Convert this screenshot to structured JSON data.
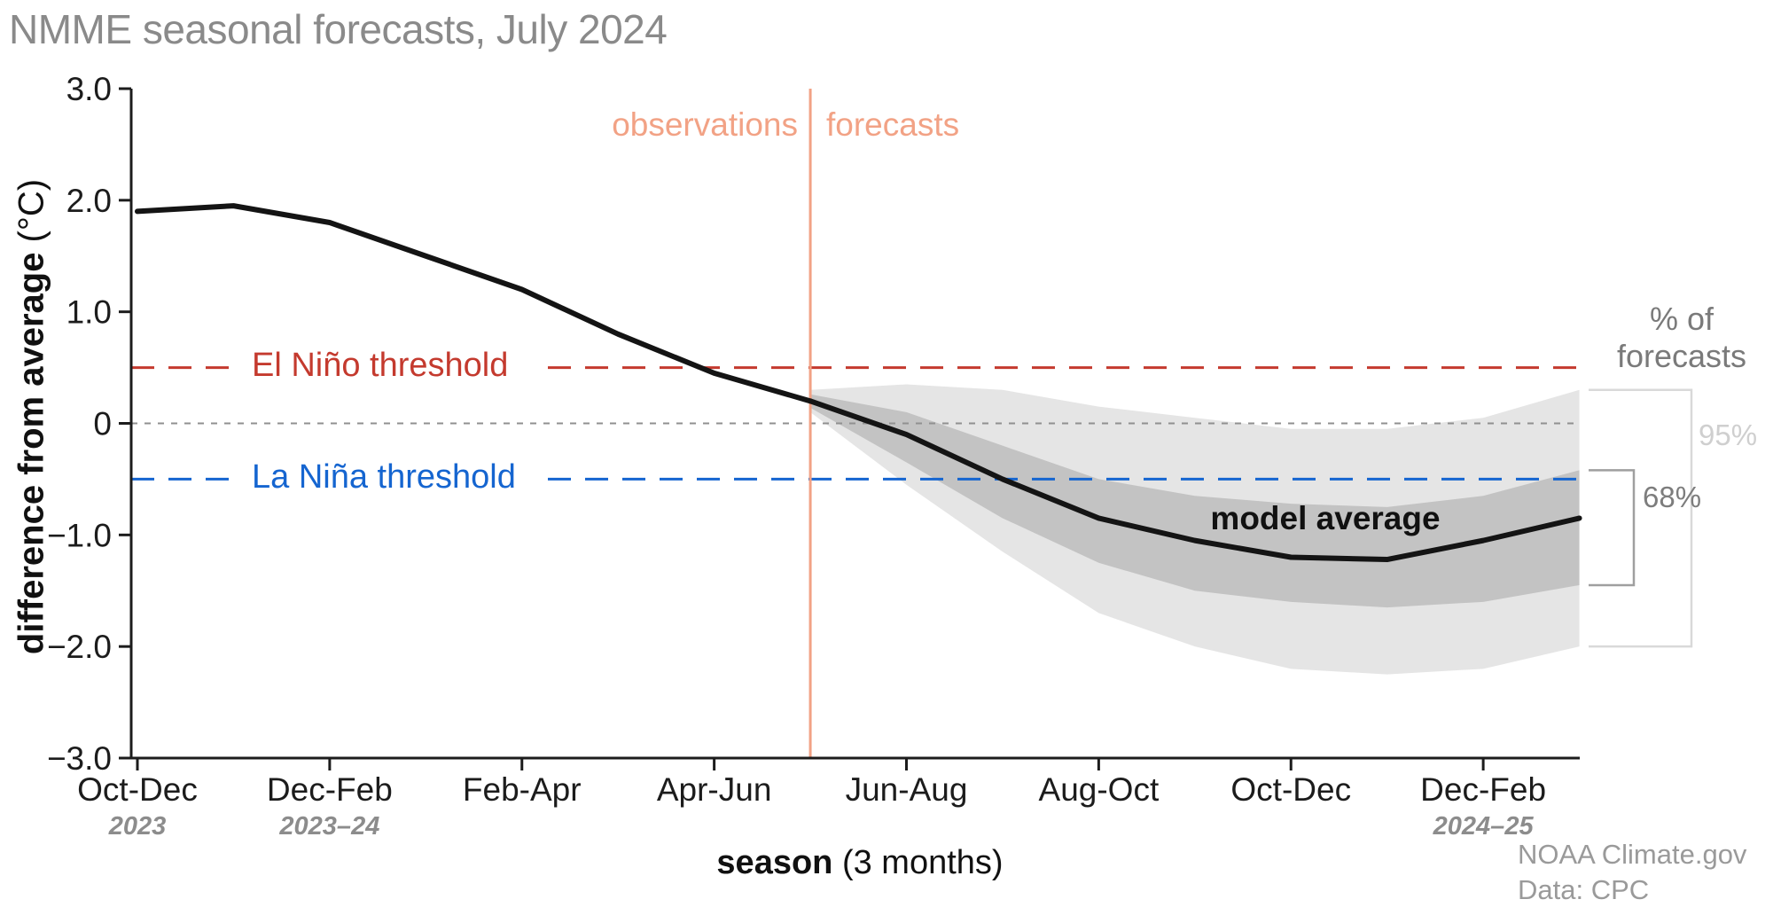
{
  "title": "NMME seasonal forecasts, July 2024",
  "axis": {
    "y_label_bold": "difference from average",
    "y_label_unit": " (°C)",
    "x_label_bold": "season",
    "x_label_rest": " (3 months)"
  },
  "labels": {
    "observations": "observations",
    "forecasts": "forecasts",
    "el_nino": "El Niño threshold",
    "la_nina": "La Niña threshold",
    "model_average": "model average",
    "pct_line1": "% of",
    "pct_line2": "forecasts"
  },
  "credits": {
    "line1": "NOAA Climate.gov",
    "line2": "Data: CPC"
  },
  "colors": {
    "observed_line": "#141414",
    "band_68": "#c3c3c3",
    "band_95": "#e5e5e5",
    "el_nino_red": "#c43a2e",
    "la_nina_blue": "#1565d0",
    "divider_salmon": "#f2a285",
    "zero_gray": "#909090",
    "axis_black": "#1c1c1c",
    "title_gray": "#8a8a8a",
    "muted_gray": "#9a9a9a",
    "pct_header_gray": "#7a7a7a",
    "pct95_gray": "#cfcfcf",
    "pct68_gray": "#7d7d7d",
    "bracket95_gray": "#d9d9d9",
    "bracket68_gray": "#9f9f9f"
  },
  "chart_data": {
    "type": "line",
    "title": "NMME seasonal forecasts, July 2024",
    "xlabel": "season (3 months)",
    "ylabel": "difference from average (°C)",
    "ylim": [
      -3.0,
      3.0
    ],
    "grid": false,
    "yticks": [
      {
        "value": 3,
        "label": "3.0"
      },
      {
        "value": 2,
        "label": "2.0"
      },
      {
        "value": 1,
        "label": "1.0"
      },
      {
        "value": 0,
        "label": "0"
      },
      {
        "value": -1,
        "label": "−1.0"
      },
      {
        "value": -2,
        "label": "−2.0"
      },
      {
        "value": -3,
        "label": "−3.0"
      }
    ],
    "xticks": [
      {
        "index": 0,
        "label": "Oct-Dec",
        "sublabel": "2023"
      },
      {
        "index": 2,
        "label": "Dec-Feb",
        "sublabel": "2023–24"
      },
      {
        "index": 4,
        "label": "Feb-Apr"
      },
      {
        "index": 6,
        "label": "Apr-Jun"
      },
      {
        "index": 8,
        "label": "Jun-Aug"
      },
      {
        "index": 10,
        "label": "Aug-Oct"
      },
      {
        "index": 12,
        "label": "Oct-Dec"
      },
      {
        "index": 14,
        "label": "Dec-Feb",
        "sublabel": "2024–25"
      }
    ],
    "divider_index": 7,
    "thresholds": {
      "el_nino": 0.5,
      "la_nina": -0.5
    },
    "observed": {
      "name": "observations",
      "start_index": 0,
      "values": [
        1.9,
        1.95,
        1.8,
        1.5,
        1.2,
        0.8,
        0.45,
        0.2
      ]
    },
    "forecast": {
      "name": "model average",
      "start_index": 7,
      "mean": [
        0.2,
        -0.1,
        -0.5,
        -0.85,
        -1.05,
        -1.2,
        -1.22,
        -1.05,
        -0.85
      ],
      "band68_upper": [
        0.26,
        0.1,
        -0.2,
        -0.5,
        -0.65,
        -0.72,
        -0.75,
        -0.65,
        -0.42
      ],
      "band68_lower": [
        0.14,
        -0.35,
        -0.85,
        -1.25,
        -1.5,
        -1.6,
        -1.65,
        -1.6,
        -1.45
      ],
      "band95_upper": [
        0.3,
        0.35,
        0.3,
        0.15,
        0.05,
        -0.05,
        -0.05,
        0.05,
        0.3
      ],
      "band95_lower": [
        0.1,
        -0.55,
        -1.15,
        -1.7,
        -2.0,
        -2.2,
        -2.25,
        -2.2,
        -2.0
      ]
    },
    "percent_brackets": [
      {
        "label": "95%",
        "top": 0.3,
        "bottom": -2.0
      },
      {
        "label": "68%",
        "top": -0.42,
        "bottom": -1.45
      }
    ]
  }
}
